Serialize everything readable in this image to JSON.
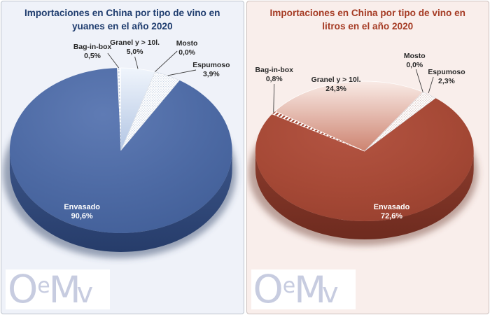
{
  "page": {
    "background": "#ffffff"
  },
  "logo": {
    "text": "OeMv",
    "parts": [
      "O",
      "e",
      "M",
      "v"
    ],
    "color": "#c7cce0"
  },
  "chart_data": [
    {
      "type": "pie",
      "style": "3d",
      "title": "Importaciones en China por tipo de vino en yuanes en el año 2020",
      "title_line1": "Importaciones en China por tipo de vino en",
      "title_line2": "yuanes en el año 2020",
      "unit": "%",
      "legend": "none",
      "categories": [
        "Bag-in-box",
        "Granel y > 10l.",
        "Mosto",
        "Espumoso",
        "Envasado"
      ],
      "values": [
        0.5,
        5.0,
        0.0,
        3.9,
        90.6
      ],
      "value_labels": [
        "0,5%",
        "5,0%",
        "0,0%",
        "3,9%",
        "90,6%"
      ],
      "colors": {
        "title": "#1e3c6e",
        "panel_bg": "#eff2f9",
        "panel_border": "#bcc3cd",
        "top_light": "#5f7bb4",
        "top": "#4d6aa4",
        "top_dark": "#405d96",
        "side_light": "#3c5588",
        "side_dark": "#263c6a",
        "soft_from": "#f0f5fc",
        "soft_to": "#b2c5e3",
        "dots": "#c3cfe1",
        "sliver_dash": "#b9c8de",
        "shadow": "rgba(62,78,114,0.5)",
        "label": "#282828",
        "inside_label": "#ffffff"
      }
    },
    {
      "type": "pie",
      "style": "3d",
      "title": "Importaciones en China por tipo de vino en litros en el año 2020",
      "title_line1": "Importaciones en China por tipo de vino en",
      "title_line2": "litros en el año 2020",
      "unit": "%",
      "legend": "none",
      "categories": [
        "Bag-in-box",
        "Granel y > 10l.",
        "Mosto",
        "Espumoso",
        "Envasado"
      ],
      "values": [
        0.8,
        24.3,
        0.0,
        2.3,
        72.6
      ],
      "value_labels": [
        "0,8%",
        "24,3%",
        "0,0%",
        "2,3%",
        "72,6%"
      ],
      "colors": {
        "title": "#a53b24",
        "panel_bg": "#f9eeeb",
        "panel_border": "#ccc0bd",
        "top_light": "#b35442",
        "top": "#a64936",
        "top_dark": "#963f2e",
        "side_light": "#8a3b2c",
        "side_dark": "#6e2b1f",
        "soft_from": "#f9ebe6",
        "soft_to": "#cd8370",
        "dots": "#d5c0ba",
        "hatch": "#a64936",
        "shadow": "rgba(112,62,50,0.45)",
        "label": "#282828",
        "inside_label": "#ffffff"
      }
    }
  ]
}
